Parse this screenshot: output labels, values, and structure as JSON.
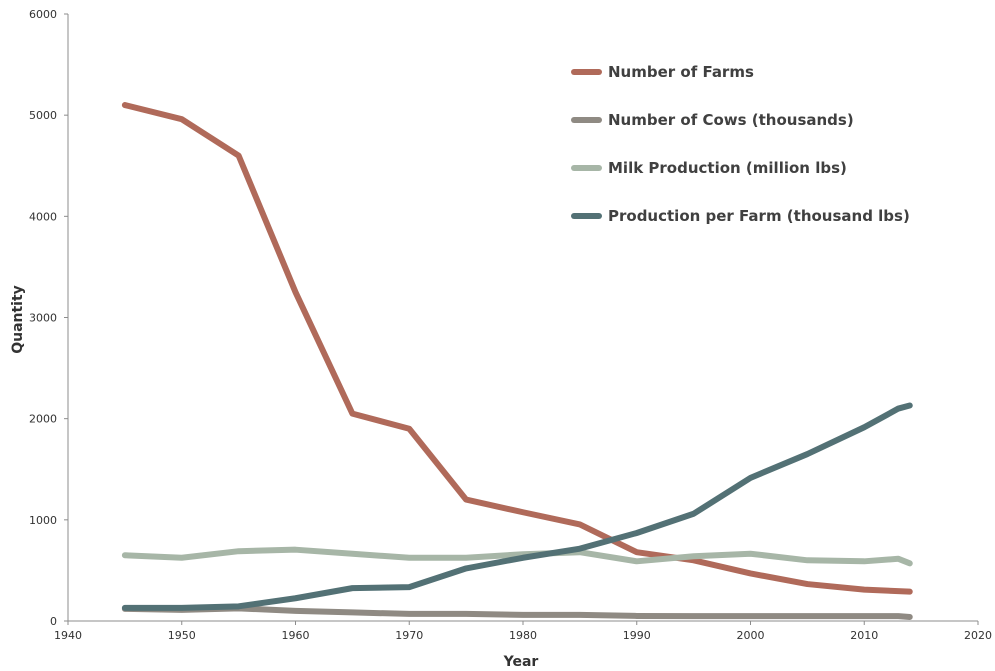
{
  "chart_data": {
    "type": "line",
    "title": "",
    "xlabel": "Year",
    "ylabel": "Quantity",
    "xlim": [
      1940,
      2020
    ],
    "ylim": [
      0,
      6000
    ],
    "x_ticks": [
      "1940",
      "1950",
      "1960",
      "1970",
      "1980",
      "1990",
      "2000",
      "2010",
      "2020"
    ],
    "y_ticks": [
      "0",
      "1000",
      "2000",
      "3000",
      "4000",
      "5000",
      "6000"
    ],
    "grid": false,
    "legend_position": "top-right",
    "series": [
      {
        "name": "Number of Farms",
        "color": "#b06a5a",
        "points": [
          [
            1945,
            5100
          ],
          [
            1950,
            4960
          ],
          [
            1955,
            4600
          ],
          [
            1960,
            3250
          ],
          [
            1965,
            2050
          ],
          [
            1970,
            1900
          ],
          [
            1975,
            1200
          ],
          [
            1980,
            1075
          ],
          [
            1985,
            955
          ],
          [
            1990,
            680
          ],
          [
            1995,
            600
          ],
          [
            2000,
            470
          ],
          [
            2005,
            365
          ],
          [
            2010,
            310
          ],
          [
            2014,
            290
          ]
        ]
      },
      {
        "name": "Number of Cows (thousands)",
        "color": "#8f8a83",
        "points": [
          [
            1945,
            120
          ],
          [
            1950,
            110
          ],
          [
            1955,
            125
          ],
          [
            1960,
            100
          ],
          [
            1965,
            85
          ],
          [
            1970,
            70
          ],
          [
            1975,
            70
          ],
          [
            1980,
            60
          ],
          [
            1985,
            60
          ],
          [
            1990,
            50
          ],
          [
            1995,
            48
          ],
          [
            2000,
            48
          ],
          [
            2005,
            48
          ],
          [
            2010,
            48
          ],
          [
            2013,
            48
          ],
          [
            2014,
            40
          ]
        ]
      },
      {
        "name": "Milk Production (million lbs)",
        "color": "#a7b6a7",
        "points": [
          [
            1945,
            650
          ],
          [
            1950,
            625
          ],
          [
            1955,
            690
          ],
          [
            1960,
            705
          ],
          [
            1965,
            665
          ],
          [
            1970,
            625
          ],
          [
            1975,
            625
          ],
          [
            1980,
            660
          ],
          [
            1985,
            680
          ],
          [
            1990,
            590
          ],
          [
            1995,
            640
          ],
          [
            2000,
            665
          ],
          [
            2005,
            600
          ],
          [
            2010,
            590
          ],
          [
            2013,
            615
          ],
          [
            2014,
            570
          ]
        ]
      },
      {
        "name": "Production per Farm (thousand lbs)",
        "color": "#537175",
        "points": [
          [
            1945,
            130
          ],
          [
            1950,
            130
          ],
          [
            1955,
            145
          ],
          [
            1960,
            225
          ],
          [
            1965,
            325
          ],
          [
            1970,
            335
          ],
          [
            1975,
            520
          ],
          [
            1980,
            625
          ],
          [
            1985,
            715
          ],
          [
            1990,
            870
          ],
          [
            1995,
            1060
          ],
          [
            2000,
            1415
          ],
          [
            2005,
            1650
          ],
          [
            2010,
            1915
          ],
          [
            2013,
            2100
          ],
          [
            2014,
            2130
          ]
        ]
      }
    ]
  }
}
